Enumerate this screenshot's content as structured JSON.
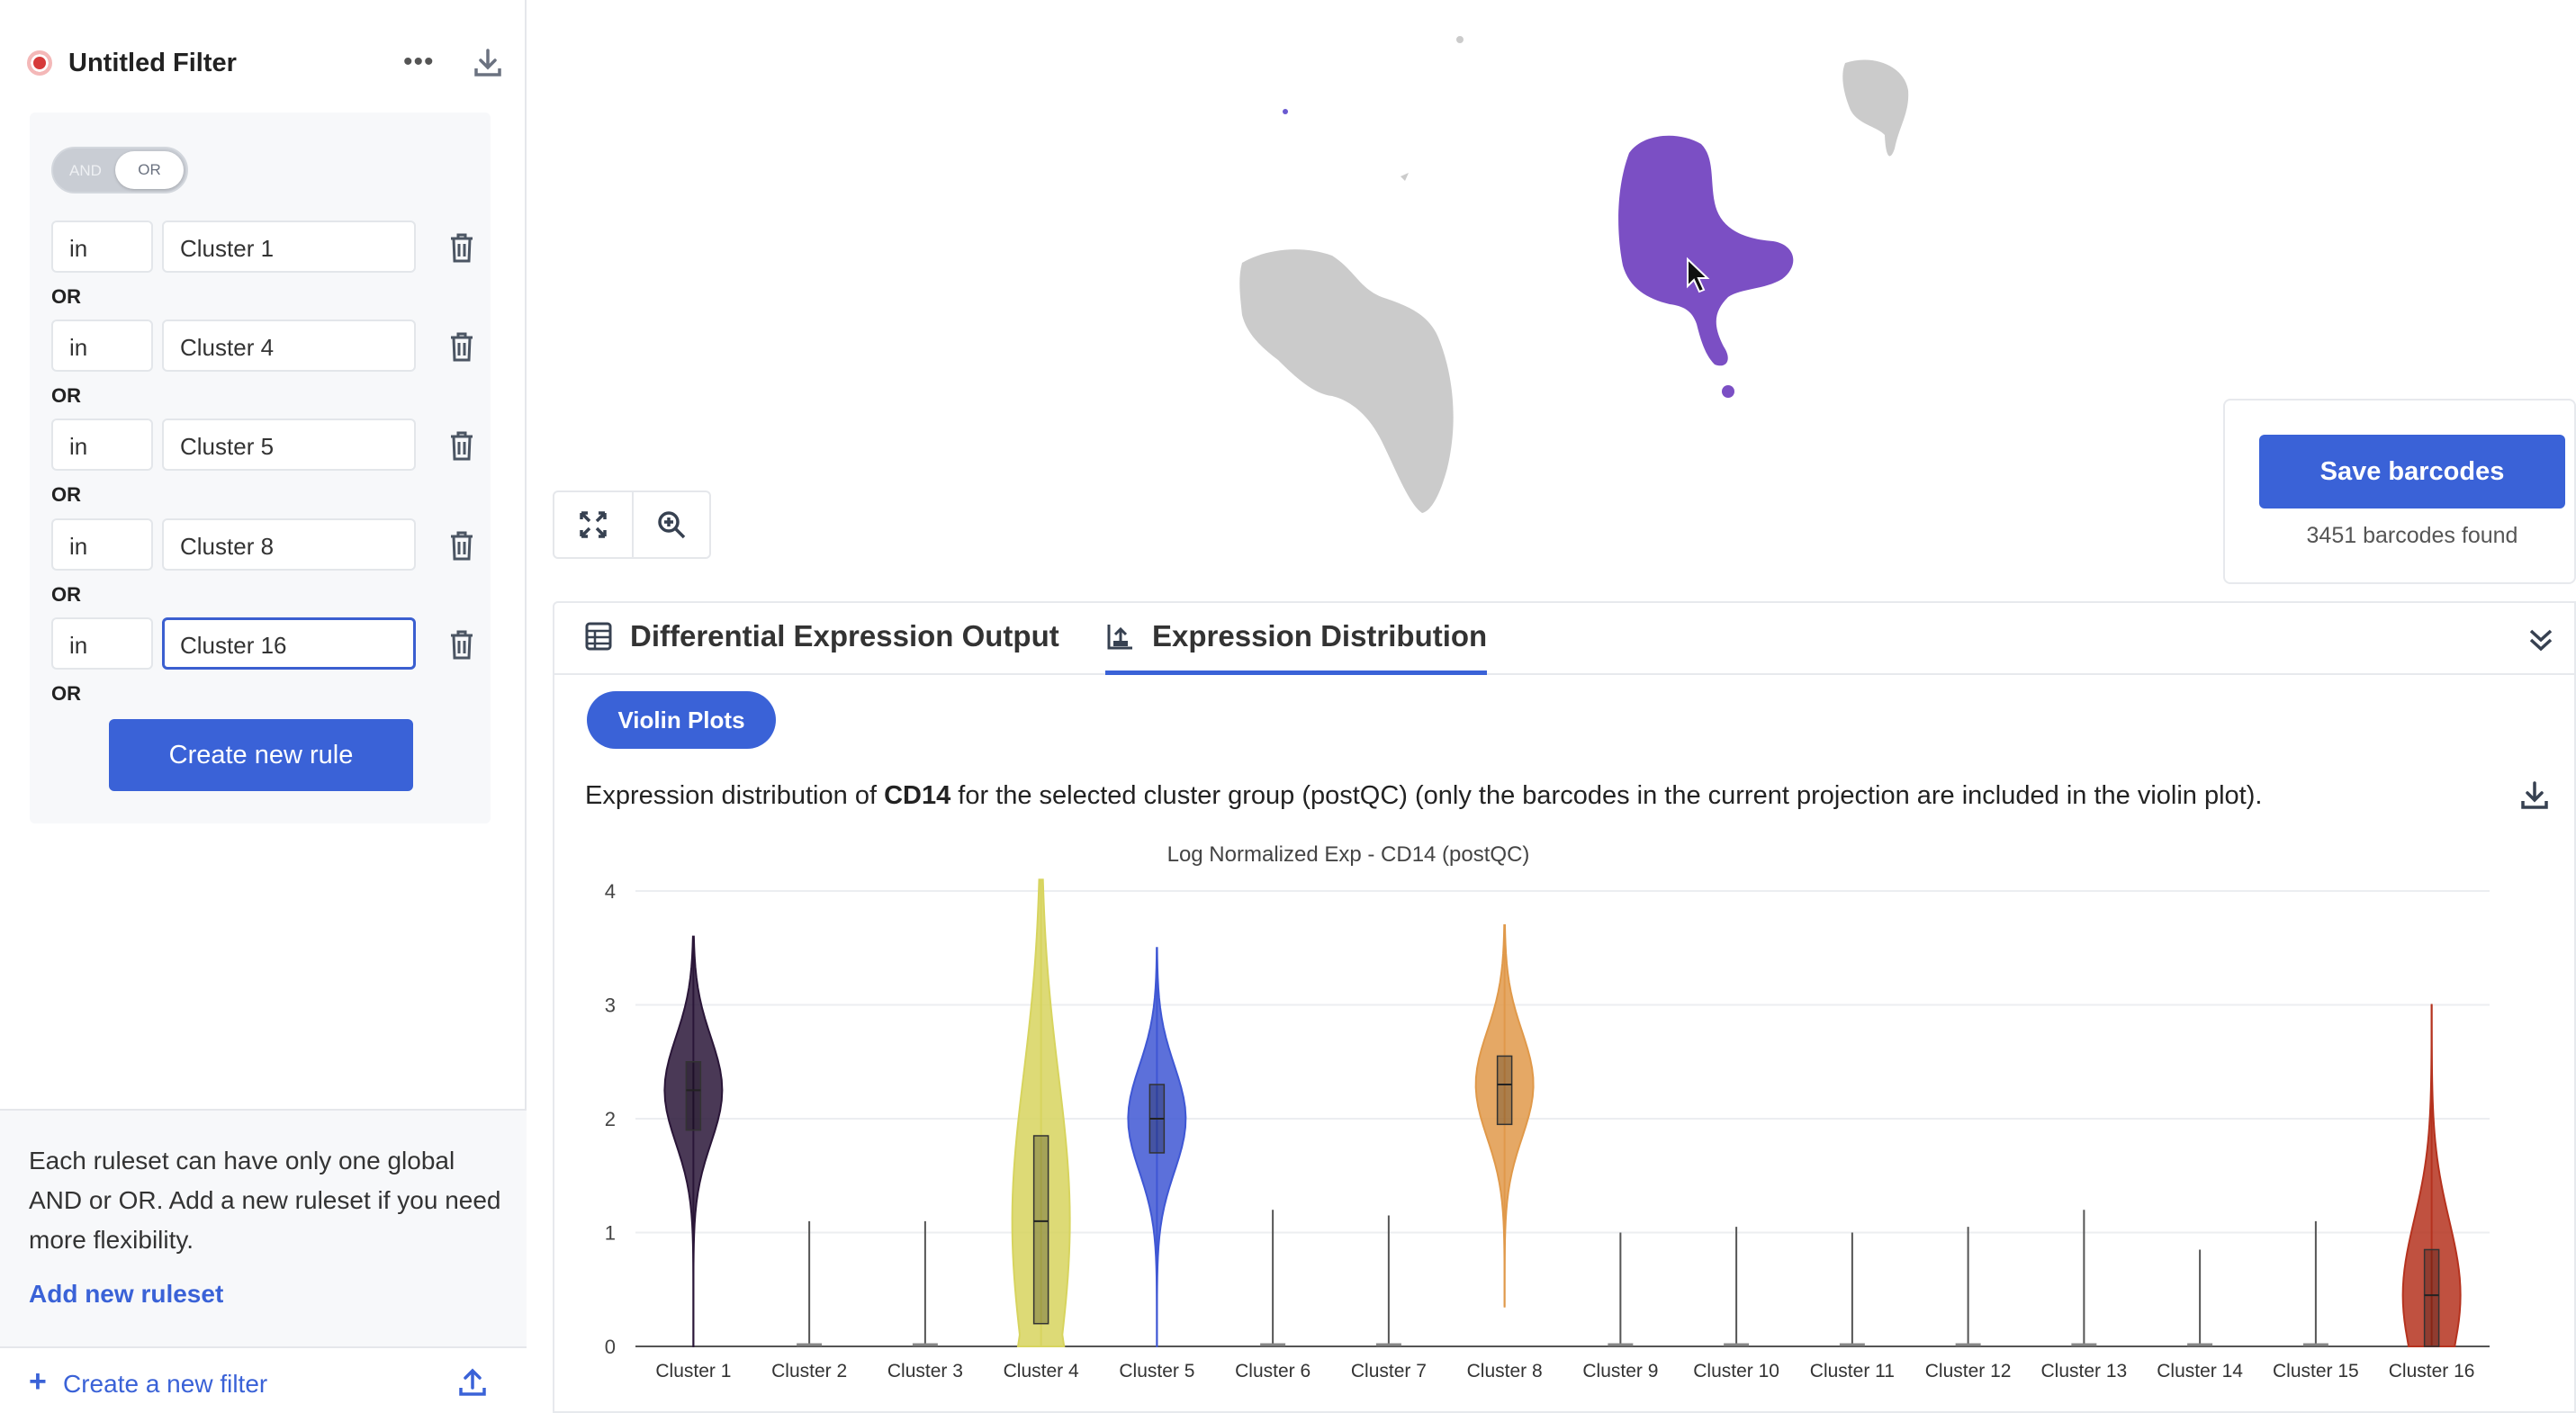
{
  "filter": {
    "title": "Untitled Filter",
    "more_label": "•••",
    "toggle": {
      "and_label": "AND",
      "or_label": "OR"
    },
    "rules": [
      {
        "op": "in",
        "value": "Cluster 1"
      },
      {
        "op": "in",
        "value": "Cluster 4"
      },
      {
        "op": "in",
        "value": "Cluster 5"
      },
      {
        "op": "in",
        "value": "Cluster 8"
      },
      {
        "op": "in",
        "value": "Cluster 16"
      }
    ],
    "joiner": "OR",
    "create_rule_label": "Create new rule",
    "help_text": "Each ruleset can have only one global AND or OR. Add a new ruleset if you need more flexibility.",
    "add_ruleset_label": "Add new ruleset",
    "new_filter_label": "Create a new filter"
  },
  "barcodes": {
    "save_label": "Save barcodes",
    "found_text": "3451 barcodes found"
  },
  "results": {
    "tabs": [
      {
        "label": "Differential Expression Output",
        "icon": "table-icon"
      },
      {
        "label": "Expression Distribution",
        "icon": "chart-upload-icon",
        "active": true
      }
    ],
    "chip_label": "Violin Plots",
    "desc_prefix": "Expression distribution of ",
    "desc_gene": "CD14",
    "desc_suffix": " for the selected cluster group (postQC) (only the barcodes in the current projection are included in the violin plot)."
  },
  "colors": {
    "accent": "#3a62d7",
    "umap_selected": "#7b4fc4",
    "umap_other": "#c9c9c9"
  },
  "chart_data": {
    "type": "violin",
    "title": "Log Normalized Exp - CD14 (postQC)",
    "ylim": [
      0,
      4
    ],
    "yticks": [
      0,
      1,
      2,
      3,
      4
    ],
    "categories": [
      "Cluster 1",
      "Cluster 2",
      "Cluster 3",
      "Cluster 4",
      "Cluster 5",
      "Cluster 6",
      "Cluster 7",
      "Cluster 8",
      "Cluster 9",
      "Cluster 10",
      "Cluster 11",
      "Cluster 12",
      "Cluster 13",
      "Cluster 14",
      "Cluster 15",
      "Cluster 16"
    ],
    "series": [
      {
        "category": "Cluster 1",
        "min": 0,
        "max": 3.6,
        "median": 2.25,
        "q1": 1.9,
        "q3": 2.5,
        "color": "#2a1638"
      },
      {
        "category": "Cluster 2",
        "min": 0,
        "max": 1.1,
        "median": 0,
        "q1": 0,
        "q3": 0,
        "color": "#444444"
      },
      {
        "category": "Cluster 3",
        "min": 0,
        "max": 1.1,
        "median": 0,
        "q1": 0,
        "q3": 0,
        "color": "#444444"
      },
      {
        "category": "Cluster 4",
        "min": 0,
        "max": 4.1,
        "median": 1.1,
        "q1": 0.2,
        "q3": 1.85,
        "color": "#d7d45e"
      },
      {
        "category": "Cluster 5",
        "min": 0,
        "max": 3.5,
        "median": 2.0,
        "q1": 1.7,
        "q3": 2.3,
        "color": "#3f57d4"
      },
      {
        "category": "Cluster 6",
        "min": 0,
        "max": 1.2,
        "median": 0,
        "q1": 0,
        "q3": 0,
        "color": "#444444"
      },
      {
        "category": "Cluster 7",
        "min": 0,
        "max": 1.15,
        "median": 0,
        "q1": 0,
        "q3": 0,
        "color": "#444444"
      },
      {
        "category": "Cluster 8",
        "min": 0.35,
        "max": 3.7,
        "median": 2.3,
        "q1": 1.95,
        "q3": 2.55,
        "color": "#e0994a"
      },
      {
        "category": "Cluster 9",
        "min": 0,
        "max": 1.0,
        "median": 0,
        "q1": 0,
        "q3": 0,
        "color": "#444444"
      },
      {
        "category": "Cluster 10",
        "min": 0,
        "max": 1.05,
        "median": 0,
        "q1": 0,
        "q3": 0,
        "color": "#444444"
      },
      {
        "category": "Cluster 11",
        "min": 0,
        "max": 1.0,
        "median": 0,
        "q1": 0,
        "q3": 0,
        "color": "#444444"
      },
      {
        "category": "Cluster 12",
        "min": 0,
        "max": 1.05,
        "median": 0,
        "q1": 0,
        "q3": 0,
        "color": "#444444"
      },
      {
        "category": "Cluster 13",
        "min": 0,
        "max": 1.2,
        "median": 0,
        "q1": 0,
        "q3": 0,
        "color": "#444444"
      },
      {
        "category": "Cluster 14",
        "min": 0,
        "max": 0.85,
        "median": 0,
        "q1": 0,
        "q3": 0,
        "color": "#444444"
      },
      {
        "category": "Cluster 15",
        "min": 0,
        "max": 1.1,
        "median": 0,
        "q1": 0,
        "q3": 0,
        "color": "#444444"
      },
      {
        "category": "Cluster 16",
        "min": 0,
        "max": 3.0,
        "median": 0.45,
        "q1": 0,
        "q3": 0.85,
        "color": "#b5321e"
      }
    ]
  }
}
